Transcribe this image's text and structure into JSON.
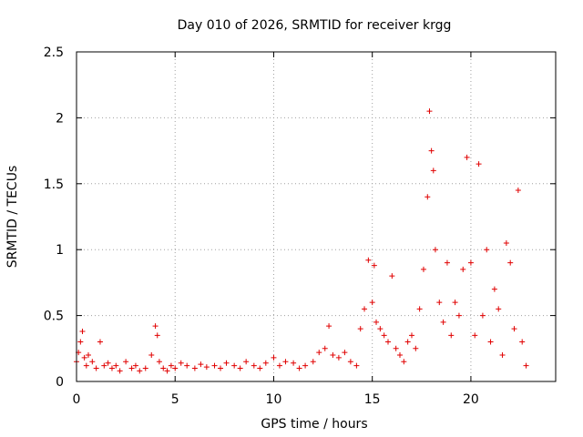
{
  "chart_data": {
    "type": "scatter",
    "title": "Day 010 of 2026, SRMTID for receiver krgg",
    "xlabel": "GPS time / hours",
    "ylabel": "SRMTID / TECUs",
    "xlim": [
      0,
      24.3
    ],
    "ylim": [
      0,
      2.5
    ],
    "xticks": [
      0,
      5,
      10,
      15,
      20
    ],
    "xtick_labels": [
      "0",
      "5",
      "10",
      "15",
      "20"
    ],
    "yticks": [
      0,
      0.5,
      1,
      1.5,
      2,
      2.5
    ],
    "ytick_labels": [
      "0",
      "0.5",
      "1",
      "1.5",
      "2",
      "2.5"
    ],
    "grid": true,
    "marker": "plus",
    "color": "#e00000",
    "series": [
      {
        "name": "SRMTID",
        "x": [
          0.0,
          0.1,
          0.2,
          0.3,
          0.4,
          0.5,
          0.6,
          0.8,
          1.0,
          1.2,
          1.4,
          1.6,
          1.8,
          2.0,
          2.2,
          2.5,
          2.8,
          3.0,
          3.2,
          3.5,
          3.8,
          4.0,
          4.1,
          4.2,
          4.4,
          4.6,
          4.8,
          5.0,
          5.3,
          5.6,
          6.0,
          6.3,
          6.6,
          7.0,
          7.3,
          7.6,
          8.0,
          8.3,
          8.6,
          9.0,
          9.3,
          9.6,
          10.0,
          10.3,
          10.6,
          11.0,
          11.3,
          11.6,
          12.0,
          12.3,
          12.6,
          12.8,
          13.0,
          13.3,
          13.6,
          13.9,
          14.2,
          14.4,
          14.6,
          14.8,
          15.0,
          15.1,
          15.2,
          15.4,
          15.6,
          15.8,
          16.0,
          16.2,
          16.4,
          16.6,
          16.8,
          17.0,
          17.2,
          17.4,
          17.6,
          17.8,
          17.9,
          18.0,
          18.1,
          18.2,
          18.4,
          18.6,
          18.8,
          19.0,
          19.2,
          19.4,
          19.6,
          19.8,
          20.0,
          20.2,
          20.4,
          20.6,
          20.8,
          21.0,
          21.2,
          21.4,
          21.6,
          21.8,
          22.0,
          22.2,
          22.4,
          22.6,
          22.8
        ],
        "y": [
          0.15,
          0.22,
          0.3,
          0.38,
          0.18,
          0.12,
          0.2,
          0.15,
          0.1,
          0.3,
          0.12,
          0.14,
          0.1,
          0.12,
          0.08,
          0.15,
          0.1,
          0.12,
          0.08,
          0.1,
          0.2,
          0.42,
          0.35,
          0.15,
          0.1,
          0.08,
          0.12,
          0.1,
          0.14,
          0.12,
          0.1,
          0.13,
          0.11,
          0.12,
          0.1,
          0.14,
          0.12,
          0.1,
          0.15,
          0.12,
          0.1,
          0.14,
          0.18,
          0.12,
          0.15,
          0.14,
          0.1,
          0.12,
          0.15,
          0.22,
          0.25,
          0.42,
          0.2,
          0.18,
          0.22,
          0.15,
          0.12,
          0.4,
          0.55,
          0.92,
          0.6,
          0.88,
          0.45,
          0.4,
          0.35,
          0.3,
          0.8,
          0.25,
          0.2,
          0.15,
          0.3,
          0.35,
          0.25,
          0.55,
          0.85,
          1.4,
          2.05,
          1.75,
          1.6,
          1.0,
          0.6,
          0.45,
          0.9,
          0.35,
          0.6,
          0.5,
          0.85,
          1.7,
          0.9,
          0.35,
          1.65,
          0.5,
          1.0,
          0.3,
          0.7,
          0.55,
          0.2,
          1.05,
          0.9,
          0.4,
          1.45,
          0.3,
          0.12
        ]
      }
    ]
  }
}
